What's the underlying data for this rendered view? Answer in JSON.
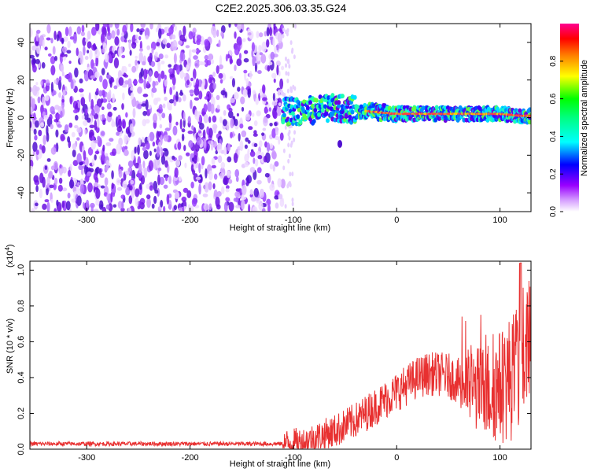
{
  "title": "C2E2.2025.306.03.35.G24",
  "chart_data": [
    {
      "type": "heatmap",
      "title": "C2E2.2025.306.03.35.G24",
      "xlabel": "Height of straight line (km)",
      "ylabel": "Frequency (Hz)",
      "xlim": [
        -355,
        130
      ],
      "ylim": [
        -50,
        50
      ],
      "xticks": [
        "-300",
        "-200",
        "-100",
        "0",
        "100"
      ],
      "yticks": [
        "-40",
        "-20",
        "0",
        "20",
        "40"
      ],
      "noise_region_x": [
        -355,
        -110
      ],
      "signal_track": {
        "x": [
          -110,
          -80,
          -60,
          -40,
          -20,
          0,
          20,
          40,
          60,
          80,
          100,
          120,
          130
        ],
        "freq": [
          3,
          4,
          5,
          4,
          3,
          2,
          2,
          2,
          2,
          2,
          2,
          1,
          1
        ]
      },
      "colorbar": {
        "label": "Normalized spectral amplitude",
        "ticks": [
          "0.0",
          "0.2",
          "0.4",
          "0.6",
          "0.8"
        ],
        "range": [
          0,
          1
        ],
        "colors": [
          "#ffffff",
          "#cc00ff",
          "#0000ff",
          "#00ffff",
          "#00ff00",
          "#ffff00",
          "#ff8000",
          "#ff0000",
          "#ff0080"
        ]
      },
      "grid": false
    },
    {
      "type": "line",
      "xlabel": "Height of straight line (km)",
      "ylabel": "SNR (10 * v/v)",
      "y_exponent": "(x10",
      "y_exponent_power": "4",
      "xlim": [
        -355,
        130
      ],
      "ylim": [
        0,
        1.05
      ],
      "xticks": [
        "-300",
        "-200",
        "-100",
        "0",
        "100"
      ],
      "yticks": [
        "0.0",
        "0.2",
        "0.4",
        "0.6",
        "0.8",
        "1.0"
      ],
      "line_color": "#e83030",
      "series": [
        {
          "x": [
            -355,
            -300,
            -250,
            -200,
            -150,
            -110,
            -90,
            -80,
            -70,
            -60,
            -50,
            -40,
            -30,
            -20,
            -10,
            0,
            10,
            20,
            30,
            40,
            50,
            60,
            70,
            80,
            90,
            100,
            110,
            120,
            125,
            130
          ],
          "values": [
            0.03,
            0.03,
            0.03,
            0.03,
            0.03,
            0.03,
            0.04,
            0.06,
            0.08,
            0.1,
            0.13,
            0.16,
            0.2,
            0.24,
            0.28,
            0.32,
            0.36,
            0.4,
            0.42,
            0.42,
            0.41,
            0.38,
            0.35,
            0.33,
            0.33,
            0.35,
            0.4,
            0.45,
            0.6,
            0.5
          ]
        }
      ],
      "grid": false
    }
  ]
}
